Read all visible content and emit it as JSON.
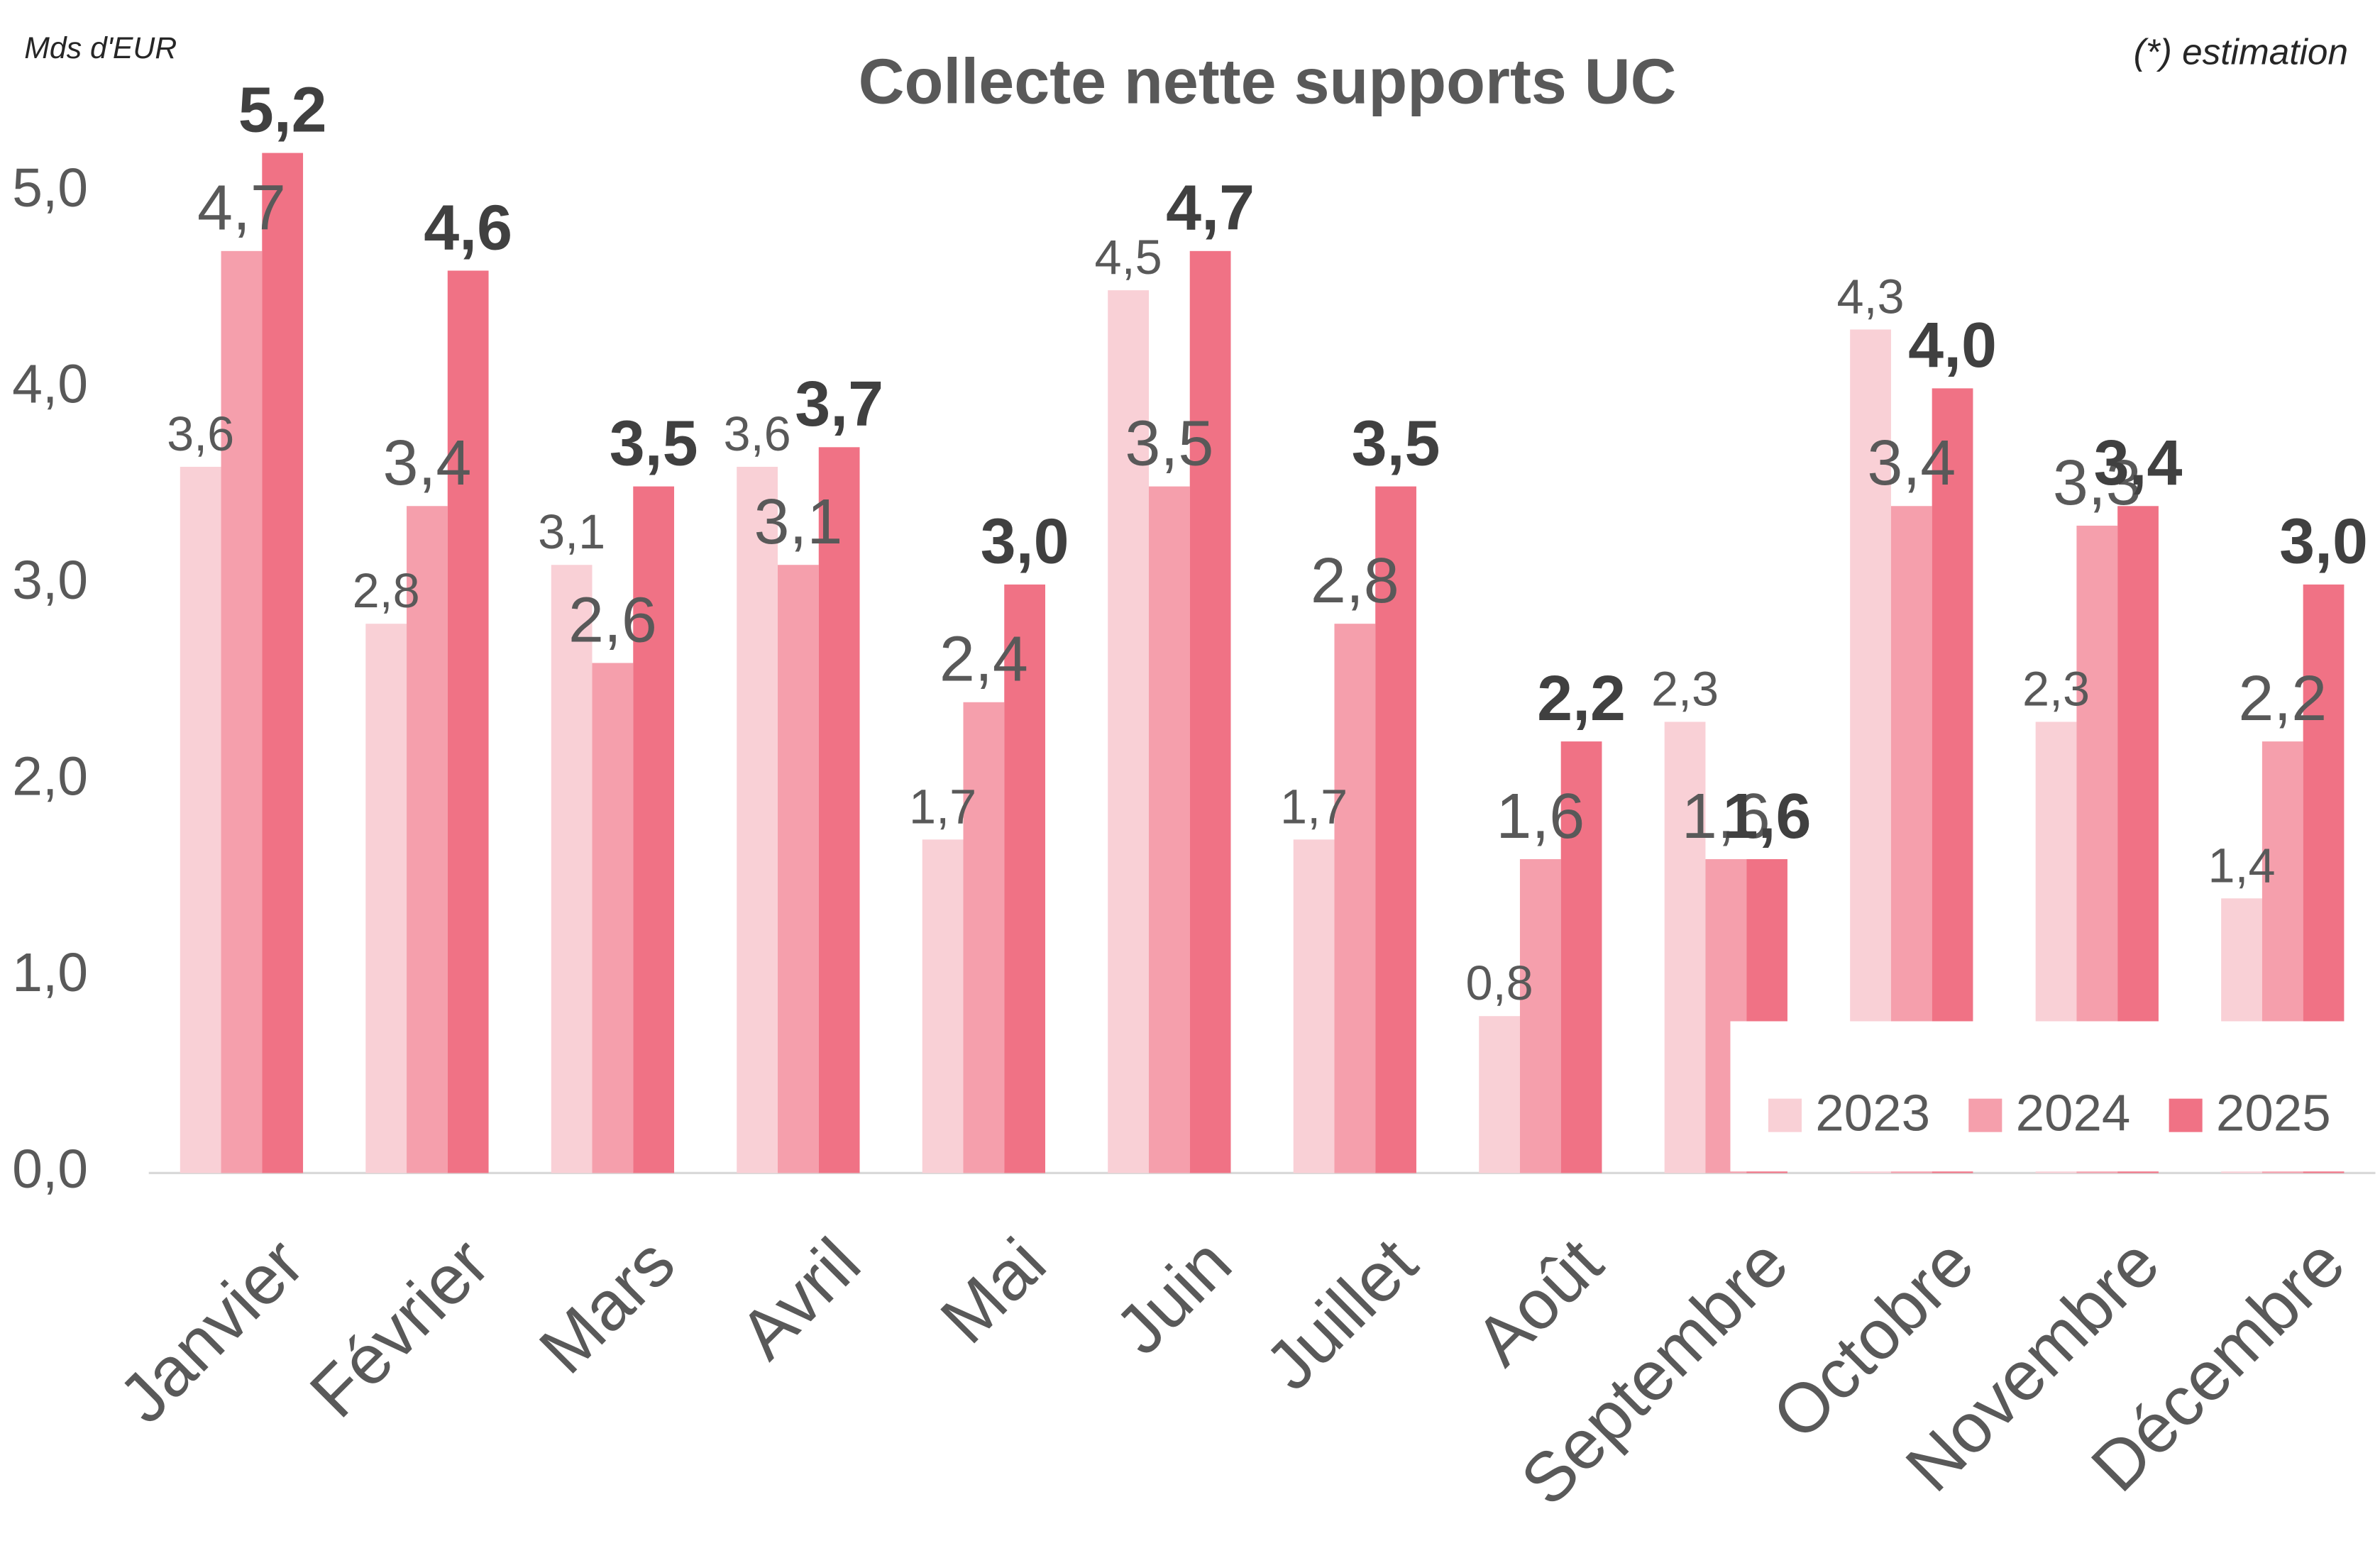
{
  "chart_data": {
    "type": "bar",
    "title": "Collecte nette supports UC",
    "unit": "Mds d'EUR",
    "note": "(*) estimation",
    "categories": [
      "Janvier",
      "Février",
      "Mars",
      "Avril",
      "Mai",
      "Juin",
      "Juillet",
      "Août",
      "Septembre",
      "Octobre",
      "Novembre",
      "Décembre"
    ],
    "series": [
      {
        "name": "2023",
        "color": "#f9d0d6",
        "values": [
          3.6,
          2.8,
          3.1,
          3.6,
          1.7,
          4.5,
          1.7,
          0.8,
          2.3,
          4.3,
          2.3,
          1.4
        ],
        "value_labels": [
          "3,6",
          "2,8",
          "3,1",
          "3,6",
          "1,7",
          "4,5",
          "1,7",
          "0,8",
          "2,3",
          "4,3",
          "2,3",
          "1,4"
        ]
      },
      {
        "name": "2024",
        "color": "#f59fac",
        "values": [
          4.7,
          3.4,
          2.6,
          3.1,
          2.4,
          3.5,
          2.8,
          1.6,
          1.6,
          3.4,
          3.3,
          2.2
        ],
        "value_labels": [
          "4,7",
          "3,4",
          "2,6",
          "3,1",
          "2,4",
          "3,5",
          "2,8",
          "1,6",
          "1,6",
          "3,4",
          "3,3",
          "2,2"
        ]
      },
      {
        "name": "2025",
        "color": "#f07285",
        "values": [
          5.2,
          4.6,
          3.5,
          3.7,
          3.0,
          4.7,
          3.5,
          2.2,
          1.6,
          4.0,
          3.4,
          3.0
        ],
        "value_labels": [
          "5,2",
          "4,6",
          "3,5",
          "3,7",
          "3,0",
          "4,7",
          "3,5",
          "2,2",
          "1,6",
          "4,0",
          "3,4",
          "3,0"
        ]
      }
    ],
    "ylim": [
      0,
      5.5
    ],
    "yticks": [
      {
        "value": 0,
        "label": "0,0"
      },
      {
        "value": 1,
        "label": "1,0"
      },
      {
        "value": 2,
        "label": "2,0"
      },
      {
        "value": 3,
        "label": "3,0"
      },
      {
        "value": 4,
        "label": "4,0"
      },
      {
        "value": 5,
        "label": "5,0"
      }
    ],
    "grid": false,
    "legend": "bottom-right"
  }
}
